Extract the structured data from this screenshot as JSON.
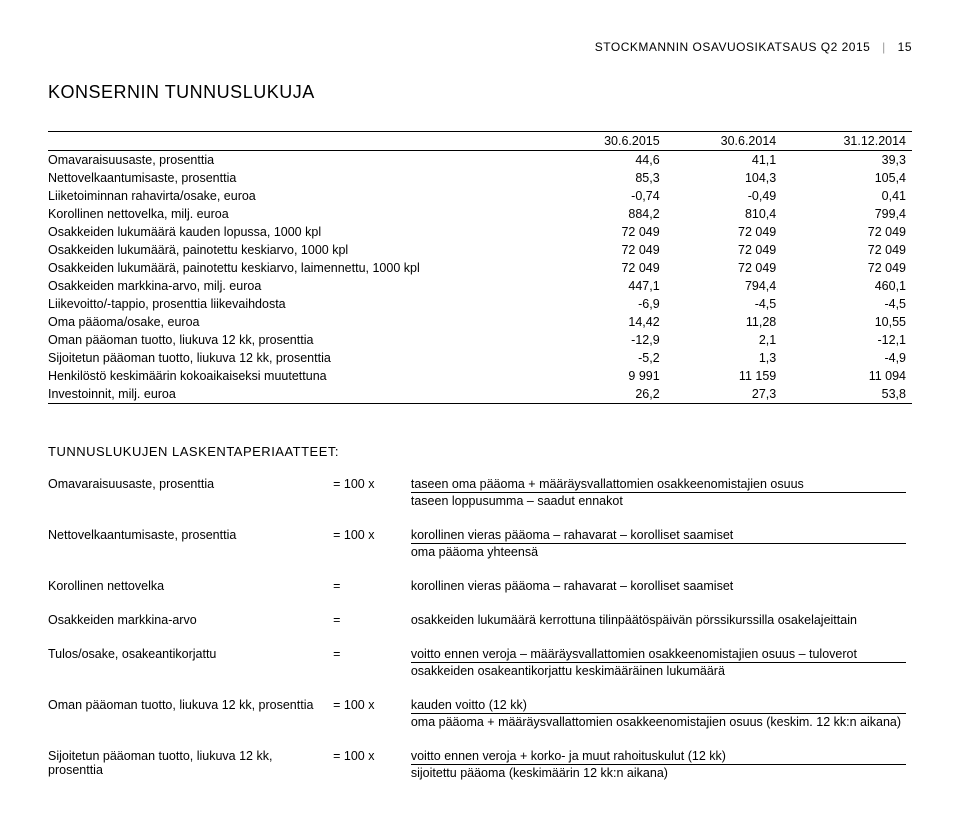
{
  "header": {
    "doc_title": "STOCKMANNIN OSAVUOSIKATSAUS Q2 2015",
    "page_number": "15"
  },
  "section_title": "KONSERNIN TUNNUSLUKUJA",
  "table": {
    "columns": [
      "",
      "30.6.2015",
      "30.6.2014",
      "31.12.2014"
    ],
    "rows": [
      [
        "Omavaraisuusaste, prosenttia",
        "44,6",
        "41,1",
        "39,3"
      ],
      [
        "Nettovelkaantumisaste, prosenttia",
        "85,3",
        "104,3",
        "105,4"
      ],
      [
        "Liiketoiminnan rahavirta/osake, euroa",
        "-0,74",
        "-0,49",
        "0,41"
      ],
      [
        "Korollinen nettovelka, milj. euroa",
        "884,2",
        "810,4",
        "799,4"
      ],
      [
        "Osakkeiden lukumäärä kauden lopussa, 1000 kpl",
        "72 049",
        "72 049",
        "72 049"
      ],
      [
        "Osakkeiden lukumäärä, painotettu keskiarvo, 1000 kpl",
        "72 049",
        "72 049",
        "72 049"
      ],
      [
        "Osakkeiden lukumäärä, painotettu keskiarvo, laimennettu, 1000 kpl",
        "72 049",
        "72 049",
        "72 049"
      ],
      [
        "Osakkeiden markkina-arvo, milj. euroa",
        "447,1",
        "794,4",
        "460,1"
      ],
      [
        "Liikevoitto/-tappio, prosenttia liikevaihdosta",
        "-6,9",
        "-4,5",
        "-4,5"
      ],
      [
        "Oma pääoma/osake, euroa",
        "14,42",
        "11,28",
        "10,55"
      ],
      [
        "Oman pääoman tuotto, liukuva 12 kk, prosenttia",
        "-12,9",
        "2,1",
        "-12,1"
      ],
      [
        "Sijoitetun pääoman tuotto, liukuva 12 kk, prosenttia",
        "-5,2",
        "1,3",
        "-4,9"
      ],
      [
        "Henkilöstö keskimäärin kokoaikaiseksi muutettuna",
        "9 991",
        "11 159",
        "11 094"
      ],
      [
        "Investoinnit, milj. euroa",
        "26,2",
        "27,3",
        "53,8"
      ]
    ]
  },
  "formulas_title": "TUNNUSLUKUJEN LASKENTAPERIAATTEET:",
  "formulas": [
    {
      "label": "Omavaraisuusaste, prosenttia",
      "mult": "= 100 x",
      "top": "taseen oma pääoma + määräysvallattomien osakkeenomistajien osuus",
      "bottom": "taseen loppusumma – saadut ennakot"
    },
    {
      "label": "Nettovelkaantumisaste, prosenttia",
      "mult": "= 100 x",
      "top": "korollinen vieras pääoma – rahavarat – korolliset saamiset",
      "bottom": "oma pääoma yhteensä"
    },
    {
      "label": "Korollinen nettovelka",
      "mult": "=",
      "top": "",
      "bottom": "korollinen vieras pääoma – rahavarat – korolliset saamiset"
    },
    {
      "label": "Osakkeiden markkina-arvo",
      "mult": "=",
      "top": "",
      "bottom": "osakkeiden lukumäärä kerrottuna tilinpäätöspäivän pörssikurssilla osakelajeittain"
    },
    {
      "label": "Tulos/osake, osakeantikorjattu",
      "mult": "=",
      "top": "voitto ennen veroja – määräysvallattomien osakkeenomistajien osuus – tuloverot",
      "bottom": "osakkeiden osakeantikorjattu keskimääräinen lukumäärä"
    },
    {
      "label": "Oman pääoman tuotto, liukuva 12 kk, prosenttia",
      "mult": "= 100 x",
      "top": "kauden voitto (12 kk)",
      "bottom": "oma pääoma + määräysvallattomien osakkeenomistajien osuus (keskim. 12 kk:n aikana)"
    },
    {
      "label": "Sijoitetun pääoman tuotto, liukuva 12 kk, prosenttia",
      "mult": "= 100 x",
      "top": "voitto ennen veroja + korko- ja muut rahoituskulut (12 kk)",
      "bottom": "sijoitettu pääoma (keskimäärin 12 kk:n aikana)"
    }
  ]
}
